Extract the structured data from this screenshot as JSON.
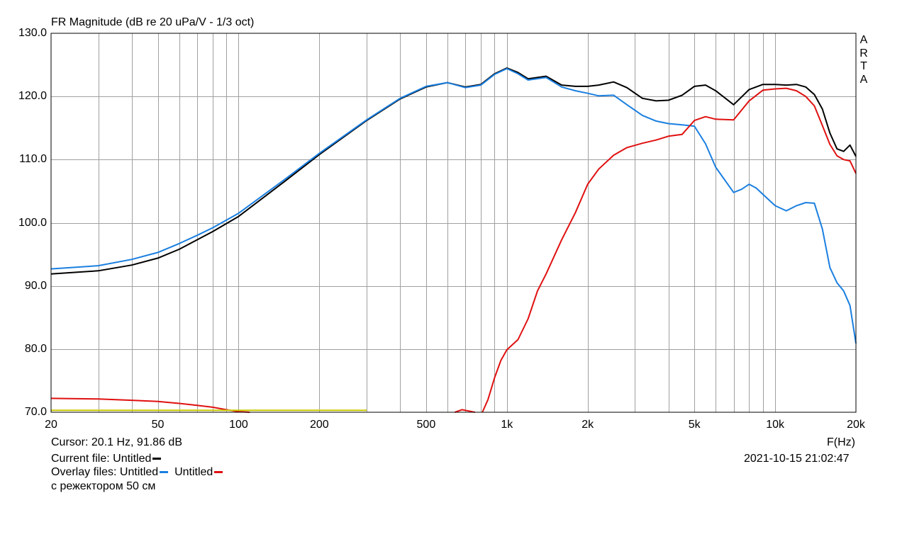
{
  "title": "FR Magnitude (dB re 20 uPa/V - 1/3 oct)",
  "watermark": [
    "A",
    "R",
    "T",
    "A"
  ],
  "cursor_label": "Cursor: 20.1 Hz, 91.86 dB",
  "current_file_label": "Current file: Untitled",
  "overlay_label": "Overlay files: Untitled",
  "overlay_label_2": "Untitled",
  "note": "с режектором 50 см",
  "x_unit_label": "F(Hz)",
  "timestamp": "2021-10-15  21:02:47",
  "colors": {
    "current": "#000000",
    "overlay1": "#1a7fe0",
    "overlay2": "#e01010",
    "aux": "#c8c800",
    "grid": "#a0a0a0"
  },
  "chart_data": {
    "type": "line",
    "x_scale": "log",
    "xlim": [
      20,
      20000
    ],
    "ylim": [
      70,
      130
    ],
    "grid": true,
    "x_ticks": [
      {
        "value": 20,
        "label": "20"
      },
      {
        "value": 50,
        "label": "50"
      },
      {
        "value": 100,
        "label": "100"
      },
      {
        "value": 200,
        "label": "200"
      },
      {
        "value": 500,
        "label": "500"
      },
      {
        "value": 1000,
        "label": "1k"
      },
      {
        "value": 2000,
        "label": "2k"
      },
      {
        "value": 5000,
        "label": "5k"
      },
      {
        "value": 10000,
        "label": "10k"
      },
      {
        "value": 20000,
        "label": "20k"
      }
    ],
    "y_ticks": [
      {
        "value": 130,
        "label": "130.0"
      },
      {
        "value": 120,
        "label": "120.0"
      },
      {
        "value": 110,
        "label": "110.0"
      },
      {
        "value": 100,
        "label": "100.0"
      },
      {
        "value": 90,
        "label": "90.0"
      },
      {
        "value": 80,
        "label": "80.0"
      },
      {
        "value": 70,
        "label": "70.0"
      }
    ],
    "series": [
      {
        "color": "#000000",
        "x": [
          20,
          30,
          40,
          50,
          60,
          70,
          80,
          100,
          150,
          200,
          300,
          400,
          500,
          600,
          700,
          800,
          900,
          1000,
          1100,
          1200,
          1400,
          1600,
          1800,
          2000,
          2200,
          2500,
          2800,
          3200,
          3600,
          4000,
          4500,
          5000,
          5500,
          6000,
          7000,
          8000,
          9000,
          10000,
          11000,
          12000,
          13000,
          14000,
          15000,
          16000,
          17000,
          18000,
          19000,
          20000
        ],
        "y": [
          91.9,
          92.4,
          93.3,
          94.4,
          95.8,
          97.3,
          98.6,
          101,
          106.7,
          110.8,
          116.2,
          119.6,
          121.5,
          122.2,
          121.5,
          121.9,
          123.6,
          124.5,
          123.8,
          122.8,
          123.2,
          121.8,
          121.6,
          121.6,
          121.8,
          122.3,
          121.4,
          119.7,
          119.3,
          119.4,
          120.2,
          121.6,
          121.8,
          120.9,
          118.7,
          121.1,
          121.9,
          121.9,
          121.8,
          121.9,
          121.5,
          120.3,
          118,
          114.2,
          111.7,
          111.3,
          112.3,
          110.5
        ]
      },
      {
        "color": "#1a7fe0",
        "x": [
          20,
          30,
          40,
          50,
          60,
          70,
          80,
          100,
          150,
          200,
          300,
          400,
          500,
          600,
          700,
          800,
          900,
          1000,
          1100,
          1200,
          1400,
          1600,
          1800,
          2000,
          2200,
          2500,
          2800,
          3200,
          3600,
          4000,
          4500,
          5000,
          5500,
          6000,
          7000,
          7500,
          8000,
          8500,
          9000,
          10000,
          11000,
          12000,
          13000,
          14000,
          15000,
          16000,
          17000,
          18000,
          19000,
          20000
        ],
        "y": [
          92.7,
          93.2,
          94.2,
          95.3,
          96.7,
          98,
          99.2,
          101.5,
          107,
          111,
          116.3,
          119.7,
          121.6,
          122.2,
          121.4,
          121.8,
          123.5,
          124.4,
          123.6,
          122.6,
          123,
          121.5,
          120.9,
          120.5,
          120.1,
          120.2,
          118.7,
          117,
          116.1,
          115.7,
          115.5,
          115.3,
          112.5,
          108.8,
          104.8,
          105.3,
          106.1,
          105.5,
          104.5,
          102.7,
          101.9,
          102.7,
          103.2,
          103.1,
          99,
          92.9,
          90.5,
          89.2,
          86.9,
          80.9
        ]
      },
      {
        "color": "#e01010",
        "x": [
          20,
          30,
          40,
          50,
          60,
          70,
          80,
          90,
          100,
          110
        ],
        "y": [
          72.2,
          72.1,
          71.9,
          71.7,
          71.4,
          71.1,
          70.8,
          70.4,
          70.1,
          70
        ]
      },
      {
        "color": "#e01010",
        "x": [
          640,
          680,
          720,
          760
        ],
        "y": [
          70,
          70.4,
          70.2,
          70
        ]
      },
      {
        "color": "#e01010",
        "x": [
          810,
          850,
          900,
          950,
          1000,
          1100,
          1200,
          1300,
          1400,
          1600,
          1800,
          2000,
          2200,
          2500,
          2800,
          3200,
          3600,
          4000,
          4500,
          5000,
          5500,
          6000,
          7000,
          8000,
          9000,
          10000,
          11000,
          12000,
          13000,
          14000,
          15000,
          16000,
          17000,
          18000,
          19000,
          20000
        ],
        "y": [
          70,
          72,
          75.5,
          78.2,
          79.9,
          81.5,
          84.8,
          89.2,
          91.9,
          97.3,
          101.6,
          106.1,
          108.5,
          110.7,
          111.9,
          112.6,
          113.1,
          113.7,
          114,
          116.2,
          116.8,
          116.4,
          116.3,
          119.3,
          121,
          121.2,
          121.3,
          120.9,
          120,
          118.5,
          115.4,
          112.4,
          110.6,
          110,
          109.8,
          107.8
        ]
      },
      {
        "color": "#c8c800",
        "x": [
          20,
          300
        ],
        "y": [
          70.3,
          70.3
        ]
      }
    ]
  }
}
